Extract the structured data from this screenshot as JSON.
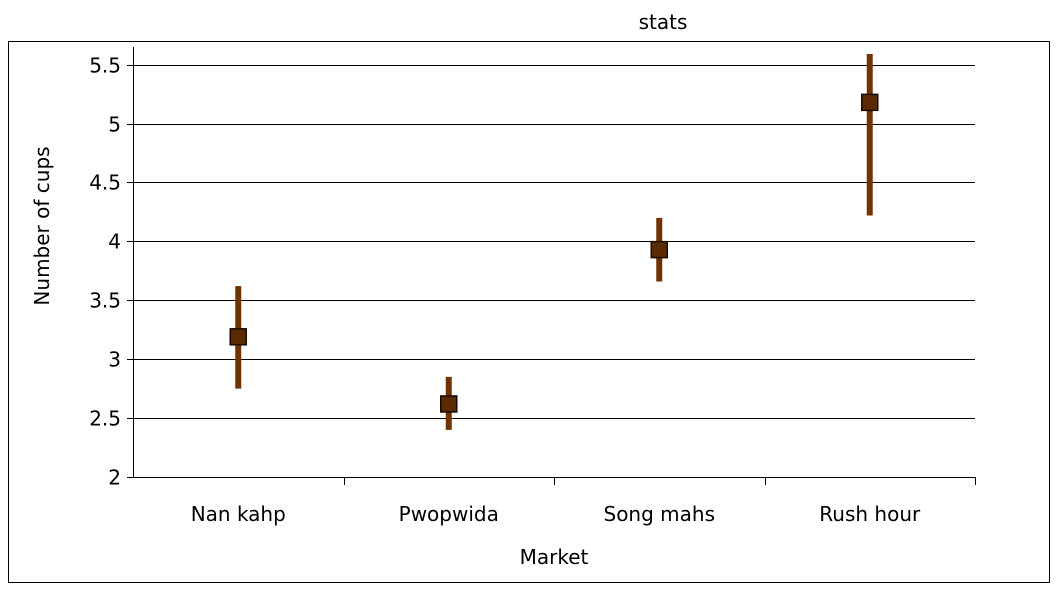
{
  "chart_data": {
    "type": "scatter",
    "title": "stats",
    "xlabel": "Market",
    "ylabel": "Number of cups",
    "categories": [
      "Nan kahp",
      "Pwopwida",
      "Song mahs",
      "Rush hour"
    ],
    "series": [
      {
        "values": [
          3.19,
          2.62,
          3.93,
          5.18
        ],
        "error_low": [
          2.75,
          2.4,
          3.66,
          4.22
        ],
        "error_high": [
          3.62,
          2.85,
          4.2,
          5.68
        ]
      }
    ],
    "ylim": [
      2,
      5.65
    ],
    "yticks": [
      2,
      2.5,
      3,
      3.5,
      4,
      4.5,
      5,
      5.5
    ],
    "ytick_labels": [
      "2",
      "2.5",
      "3",
      "3.5",
      "4",
      "4.5",
      "5",
      "5.5"
    ],
    "grid": true,
    "legend": "none",
    "colors": {
      "marker": "#5a2a00",
      "errorbar": "#6e3300",
      "grid": "#000000"
    }
  }
}
